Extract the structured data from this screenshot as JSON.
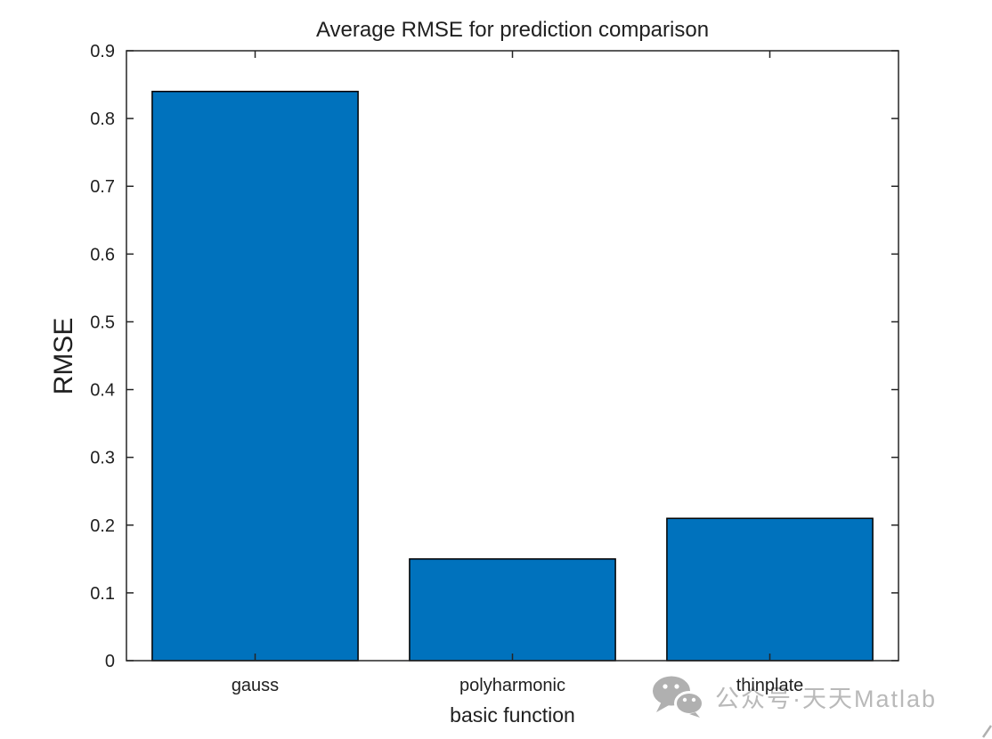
{
  "figure": {
    "background": "#ffffff"
  },
  "chart_data": {
    "type": "bar",
    "title": "Average RMSE for prediction comparison",
    "xlabel": "basic function",
    "ylabel": "RMSE",
    "categories": [
      "gauss",
      "polyharmonic",
      "thinplate"
    ],
    "values": [
      0.84,
      0.15,
      0.21
    ],
    "ylim": [
      0,
      0.9
    ],
    "yticks": [
      0,
      0.1,
      0.2,
      0.3,
      0.4,
      0.5,
      0.6,
      0.7,
      0.8,
      0.9
    ],
    "ytick_labels": [
      "0",
      "0.1",
      "0.2",
      "0.3",
      "0.4",
      "0.5",
      "0.6",
      "0.7",
      "0.8",
      "0.9"
    ],
    "grid": false,
    "legend": null,
    "box": true,
    "tick_direction": "in",
    "bar_fraction": 0.8,
    "bar_color": "#0072BD",
    "bar_edge_color": "#000000",
    "axis_color": "#252525",
    "text_color": "#1f1f1f"
  },
  "watermark": {
    "icon": "wechat-icon",
    "text": "公众号·天天Matlab",
    "color": "#b9b9b9"
  }
}
